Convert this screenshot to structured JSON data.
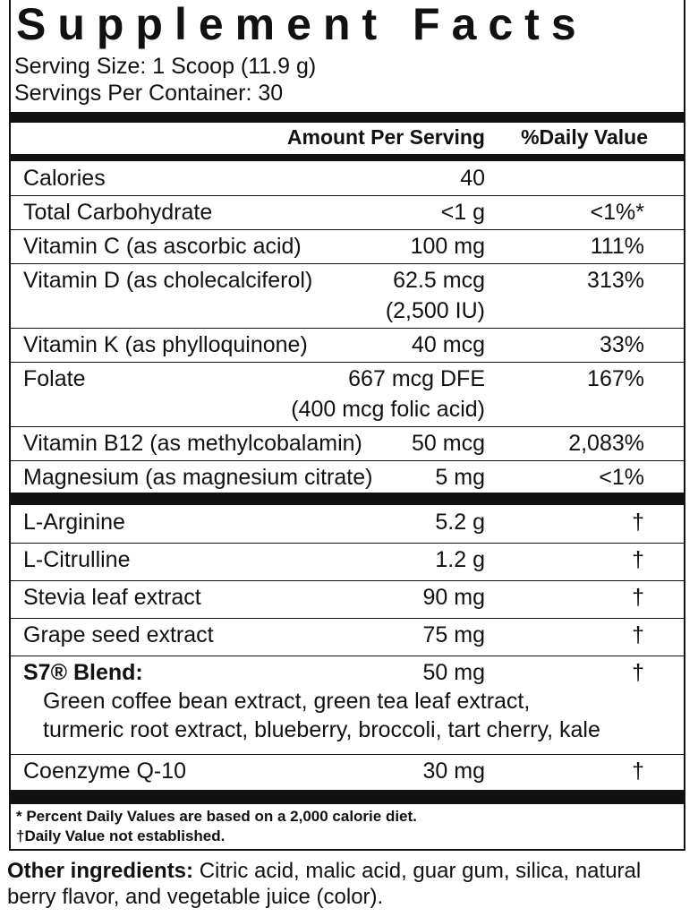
{
  "title": "Supplement Facts",
  "serving_size": "Serving Size: 1 Scoop (11.9 g)",
  "servings_per_container": "Servings Per Container: 30",
  "header": {
    "amount": "Amount Per Serving",
    "dv": "%Daily Value"
  },
  "section1": [
    {
      "name": "Calories",
      "amount": "40"
    },
    {
      "name": "Total Carbohydrate",
      "amount": "<1 g",
      "dv": "<1%*"
    },
    {
      "name": "Vitamin C (as ascorbic acid)",
      "amount": "100 mg",
      "dv": "111%"
    },
    {
      "name": "Vitamin D (as cholecalciferol)",
      "amount": "62.5 mcg",
      "note": "(2,500 IU)",
      "dv": "313%"
    },
    {
      "name": "Vitamin K (as phylloquinone)",
      "amount": "40 mcg",
      "dv": "33%"
    },
    {
      "name": "Folate",
      "amount": "667 mcg DFE",
      "note": "(400 mcg folic acid)",
      "dv": "167%"
    },
    {
      "name": "Vitamin B12 (as methylcobalamin)",
      "amount": "50 mcg",
      "dv": "2,083%"
    },
    {
      "name": "Magnesium (as magnesium citrate)",
      "amount": "5 mg",
      "dv": "<1%"
    }
  ],
  "section2": [
    {
      "name": "L-Arginine",
      "amount": "5.2 g",
      "dv": "†"
    },
    {
      "name": "L-Citrulline",
      "amount": "1.2 g",
      "dv": "†"
    },
    {
      "name": "Stevia leaf extract",
      "amount": "90 mg",
      "dv": "†"
    },
    {
      "name": "Grape seed extract",
      "amount": "75 mg",
      "dv": "†"
    },
    {
      "name": "S7® Blend:",
      "amount": "50 mg",
      "dv": "†",
      "detail": [
        "Green coffee bean extract, green tea leaf extract,",
        "turmeric root extract, blueberry, broccoli, tart cherry, kale"
      ]
    },
    {
      "name": "Coenzyme Q-10",
      "amount": "30 mg",
      "dv": "†"
    }
  ],
  "footnotes": [
    "* Percent Daily Values are based on a 2,000 calorie diet.",
    "†Daily Value not established."
  ],
  "other_ingredients": {
    "label": "Other ingredients:",
    "text": "Citric acid, malic acid, guar gum, silica, natural berry flavor, and vegetable juice (color)."
  }
}
